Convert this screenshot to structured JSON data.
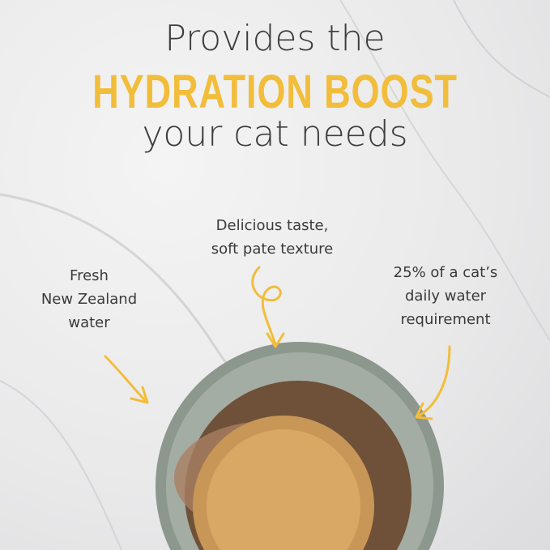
{
  "headline": {
    "line1": "Provides the",
    "line2": "HYDRATION BOOST",
    "line3": "your cat needs"
  },
  "callouts": {
    "taste": [
      "Delicious taste,",
      "soft pate texture"
    ],
    "water": [
      "Fresh",
      "New Zealand",
      "water"
    ],
    "requirement": [
      "25% of a cat’s",
      "daily water",
      "requirement"
    ]
  },
  "colors": {
    "accent": "#f2bd3a",
    "text": "#3d3d3d",
    "bowl": "#8f9a90"
  }
}
